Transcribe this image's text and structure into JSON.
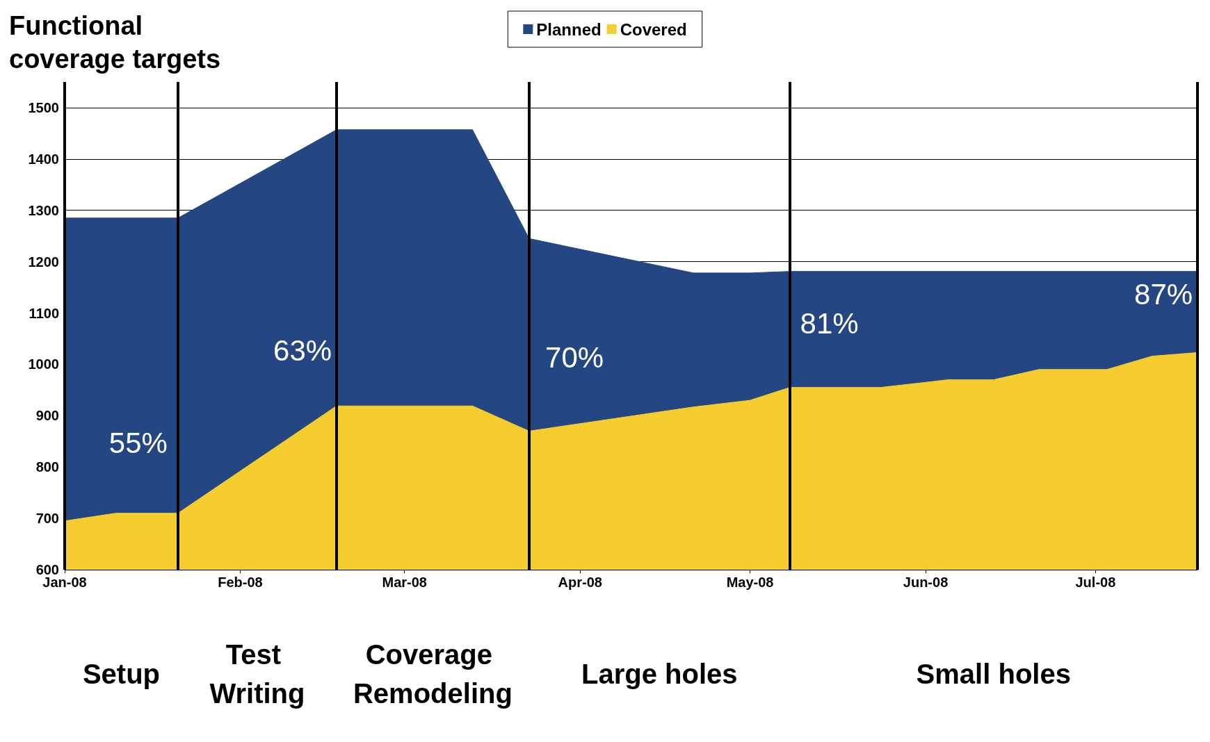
{
  "chart_data": {
    "type": "area",
    "title": "Functional coverage targets",
    "series": [
      {
        "name": "Planned",
        "color": "#244683",
        "x": [
          "2008-01-01",
          "2008-01-21",
          "2008-02-18",
          "2008-03-13",
          "2008-03-23",
          "2008-04-21",
          "2008-05-01",
          "2008-05-08",
          "2008-07-19"
        ],
        "values": [
          1285,
          1285,
          1457,
          1457,
          1245,
          1178,
          1178,
          1181,
          1181
        ]
      },
      {
        "name": "Covered",
        "color": "#f5cd2f",
        "x": [
          "2008-01-01",
          "2008-01-10",
          "2008-01-21",
          "2008-02-18",
          "2008-03-13",
          "2008-03-23",
          "2008-04-21",
          "2008-05-01",
          "2008-05-08",
          "2008-05-24",
          "2008-06-05",
          "2008-06-13",
          "2008-06-21",
          "2008-07-03",
          "2008-07-11",
          "2008-07-19"
        ],
        "values": [
          695,
          710,
          710,
          919,
          919,
          870,
          917,
          930,
          955,
          955,
          970,
          970,
          990,
          990,
          1016,
          1023
        ]
      }
    ],
    "xlim": [
      "2008-01-01",
      "2008-07-19"
    ],
    "xticks": [
      {
        "value": "2008-01-01",
        "label": "Jan-08"
      },
      {
        "value": "2008-02-01",
        "label": "Feb-08"
      },
      {
        "value": "2008-03-01",
        "label": "Mar-08"
      },
      {
        "value": "2008-04-01",
        "label": "Apr-08"
      },
      {
        "value": "2008-05-01",
        "label": "May-08"
      },
      {
        "value": "2008-06-01",
        "label": "Jun-08"
      },
      {
        "value": "2008-07-01",
        "label": "Jul-08"
      }
    ],
    "ylim": [
      600,
      1550
    ],
    "yticks": [
      600,
      700,
      800,
      900,
      1000,
      1100,
      1200,
      1300,
      1400,
      1500
    ],
    "grid": "y",
    "legend": "top",
    "marker": "none",
    "ref_lines": [
      {
        "axis": "x",
        "value": "2008-01-01",
        "color": "#000000"
      },
      {
        "axis": "x",
        "value": "2008-01-21",
        "color": "#000000"
      },
      {
        "axis": "x",
        "value": "2008-02-18",
        "color": "#000000"
      },
      {
        "axis": "x",
        "value": "2008-03-23",
        "color": "#000000"
      },
      {
        "axis": "x",
        "value": "2008-05-08",
        "color": "#000000"
      },
      {
        "axis": "x",
        "value": "2008-07-19",
        "color": "#000000"
      }
    ],
    "annotations": [
      "55%",
      "63%",
      "70%",
      "81%",
      "87%",
      "Setup",
      "Test Writing",
      "Coverage Remodeling",
      "Large holes",
      "Small holes"
    ]
  }
}
